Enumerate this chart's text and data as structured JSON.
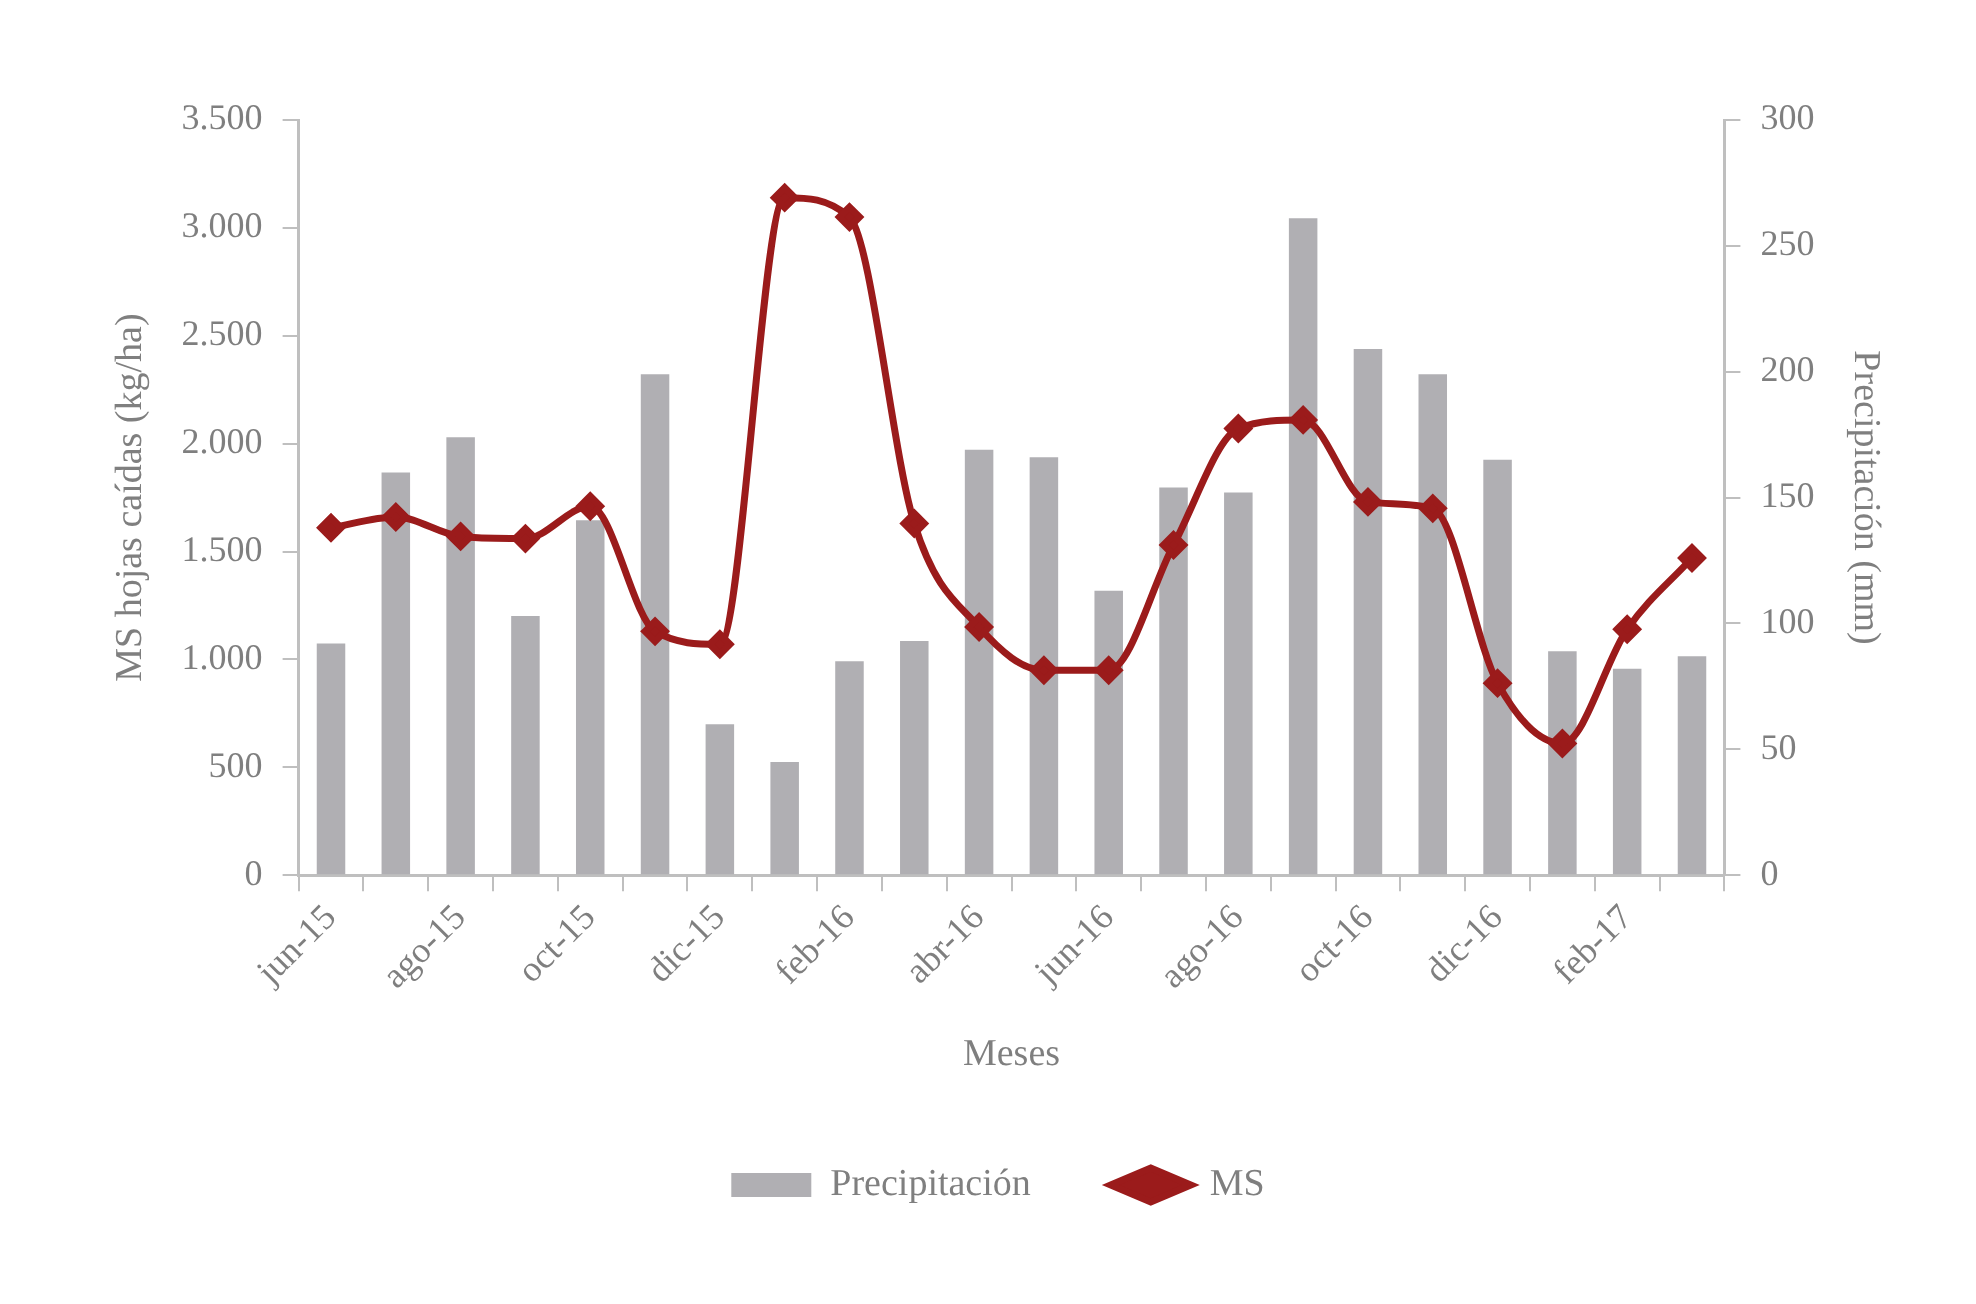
{
  "chart_data": {
    "type": "bar",
    "categories": [
      "jun-15",
      null,
      "ago-15",
      null,
      "oct-15",
      null,
      "dic-15",
      null,
      "feb-16",
      null,
      "abr-16",
      null,
      "jun-16",
      null,
      "ago-16",
      null,
      "oct-16",
      null,
      "dic-16",
      null,
      "feb-17",
      null
    ],
    "xlabel": "Meses",
    "ylabel": "MS hojas caídas (kg/ha)",
    "y2label": "Precipitación (mm)",
    "series": [
      {
        "name": "Precipitación",
        "axis": "y2",
        "color": "#b0afb3",
        "values": [
          92,
          160,
          174,
          103,
          141,
          199,
          60,
          45,
          85,
          93,
          169,
          166,
          113,
          154,
          152,
          261,
          209,
          199,
          165,
          89,
          82,
          87
        ]
      },
      {
        "name": "MS",
        "type": "line",
        "axis": "y",
        "color": "#9b1b1b",
        "marker": "diamond",
        "line_style": "solid",
        "values": [
          1610,
          1660,
          1570,
          1560,
          1710,
          1130,
          1070,
          3140,
          3050,
          1630,
          1150,
          950,
          950,
          1530,
          2070,
          2110,
          1730,
          1700,
          890,
          610,
          1140,
          1470
        ]
      }
    ],
    "ylim": [
      0,
      3500
    ],
    "yticks": [
      0,
      {
        "value": 500,
        "label": "500"
      },
      {
        "value": 1000,
        "label": "1.000"
      },
      {
        "value": 1500,
        "label": "1.500"
      },
      {
        "value": 2000,
        "label": "2.000"
      },
      {
        "value": 2500,
        "label": "2.500"
      },
      {
        "value": 3000,
        "label": "3.000"
      },
      {
        "value": 3500,
        "label": "3.500"
      }
    ],
    "y2lim": [
      0,
      300
    ],
    "y2ticks": [
      0,
      50,
      100,
      150,
      200,
      250,
      300
    ],
    "grid": false,
    "legend": "bottom"
  }
}
